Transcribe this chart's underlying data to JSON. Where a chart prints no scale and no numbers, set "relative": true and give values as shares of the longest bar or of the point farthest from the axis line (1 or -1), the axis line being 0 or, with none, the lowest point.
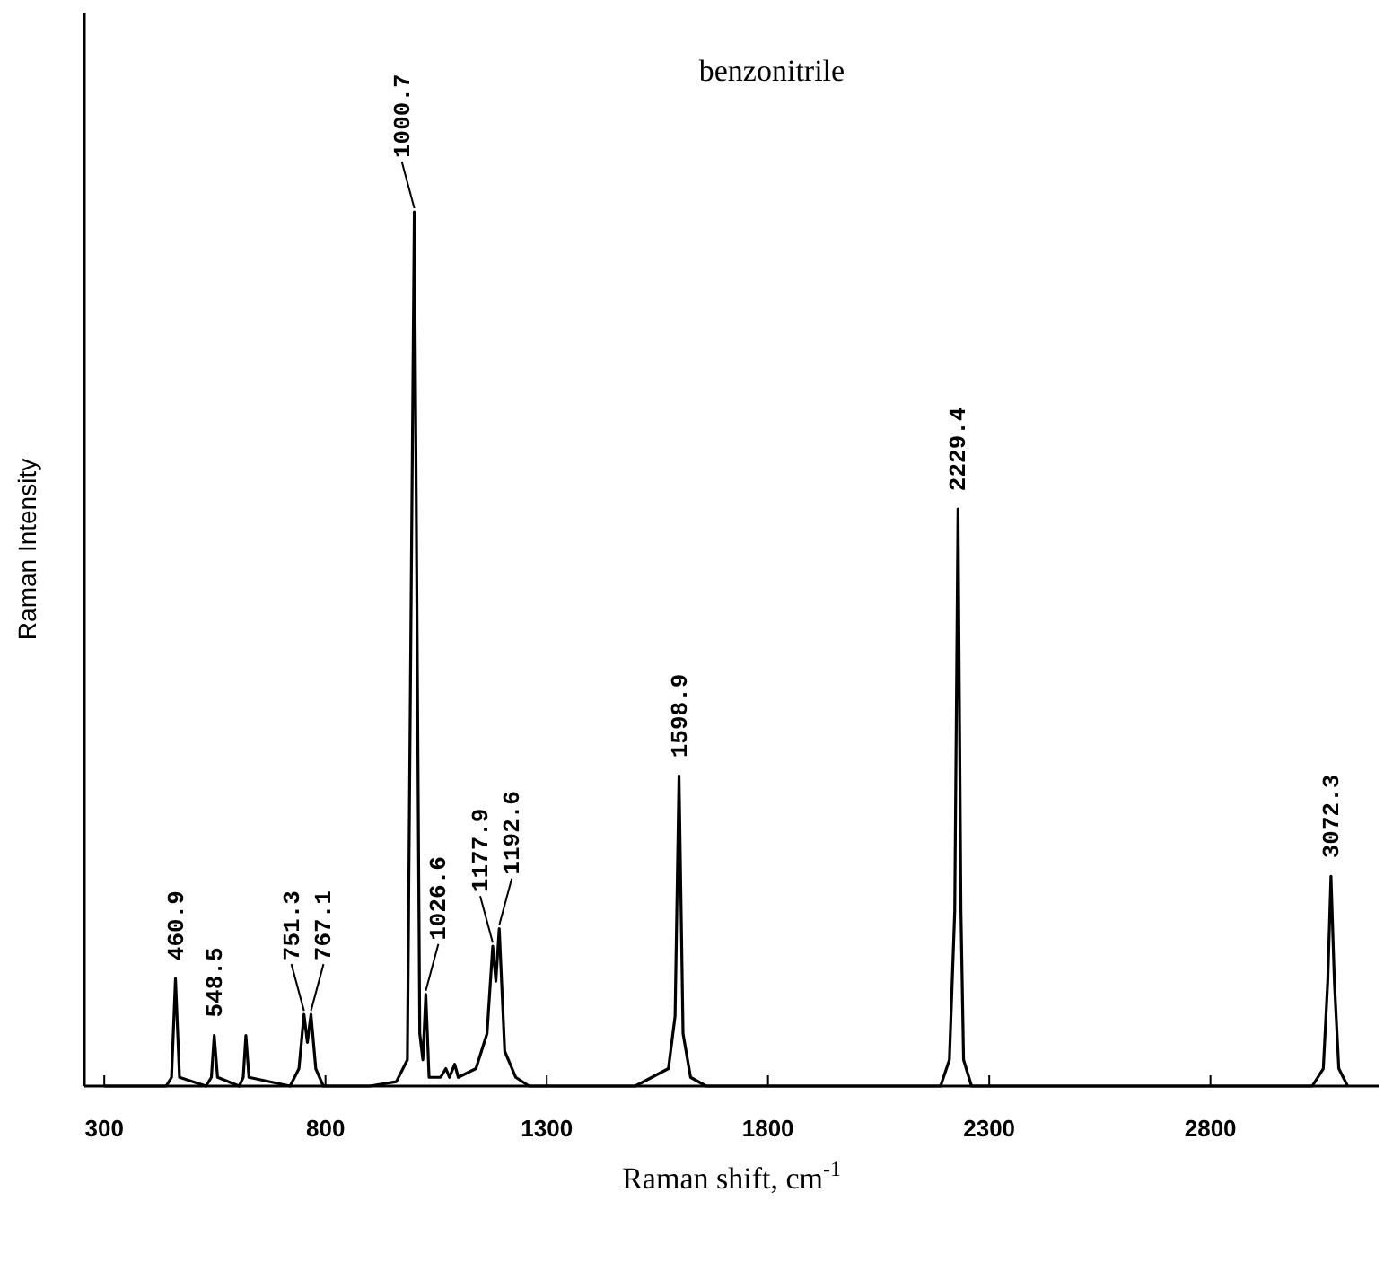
{
  "chart_data": {
    "type": "line",
    "title": "benzonitrile",
    "xlabel": "Raman shift, cm$^{-1}$",
    "ylabel": "Raman Intensity",
    "relative": true,
    "color": "#000000",
    "line_style": "solid",
    "xlim": [
      255,
      3180
    ],
    "xticks": [
      300,
      800,
      1300,
      1800,
      2300,
      2800
    ],
    "x": [
      300,
      440,
      452,
      460.9,
      470,
      530,
      542,
      548.5,
      556,
      605,
      614,
      620,
      627,
      720,
      740,
      751.3,
      759,
      767.1,
      778,
      795,
      900,
      960,
      985,
      1000.7,
      1013,
      1020,
      1026.6,
      1034,
      1060,
      1072,
      1080,
      1092,
      1100,
      1140,
      1165,
      1177.9,
      1185,
      1192.6,
      1205,
      1230,
      1260,
      1500,
      1575,
      1590,
      1598.9,
      1608,
      1625,
      1660,
      2190,
      2210,
      2222,
      2229.4,
      2236,
      2242,
      2260,
      3030,
      3055,
      3065,
      3072.3,
      3080,
      3090,
      3110
    ],
    "values": [
      0,
      0,
      0.01,
      0.123,
      0.01,
      0,
      0.01,
      0.058,
      0.01,
      0,
      0.01,
      0.058,
      0.01,
      0,
      0.02,
      0.082,
      0.05,
      0.082,
      0.02,
      0,
      0,
      0.005,
      0.03,
      1,
      0.06,
      0.03,
      0.105,
      0.01,
      0.01,
      0.02,
      0.01,
      0.025,
      0.01,
      0.02,
      0.06,
      0.16,
      0.12,
      0.18,
      0.04,
      0.01,
      0,
      0,
      0.02,
      0.08,
      0.355,
      0.06,
      0.01,
      0,
      0,
      0.03,
      0.2,
      0.66,
      0.2,
      0.03,
      0,
      0,
      0.02,
      0.12,
      0.24,
      0.12,
      0.02,
      0
    ],
    "annotations": [
      {
        "text": "460.9",
        "x": 460.9,
        "y": 0.123
      },
      {
        "text": "548.5",
        "x": 548.5,
        "y": 0.058
      },
      {
        "text": "751.3",
        "x": 751.3,
        "y": 0.082
      },
      {
        "text": "767.1",
        "x": 767.1,
        "y": 0.082
      },
      {
        "text": "1000.7",
        "x": 1000.7,
        "y": 1
      },
      {
        "text": "1026.6",
        "x": 1026.6,
        "y": 0.105
      },
      {
        "text": "1177.9",
        "x": 1177.9,
        "y": 0.16
      },
      {
        "text": "1192.6",
        "x": 1192.6,
        "y": 0.18
      },
      {
        "text": "1598.9",
        "x": 1598.9,
        "y": 0.355
      },
      {
        "text": "2229.4",
        "x": 2229.4,
        "y": 0.66
      },
      {
        "text": "3072.3",
        "x": 3072.3,
        "y": 0.24
      }
    ]
  }
}
